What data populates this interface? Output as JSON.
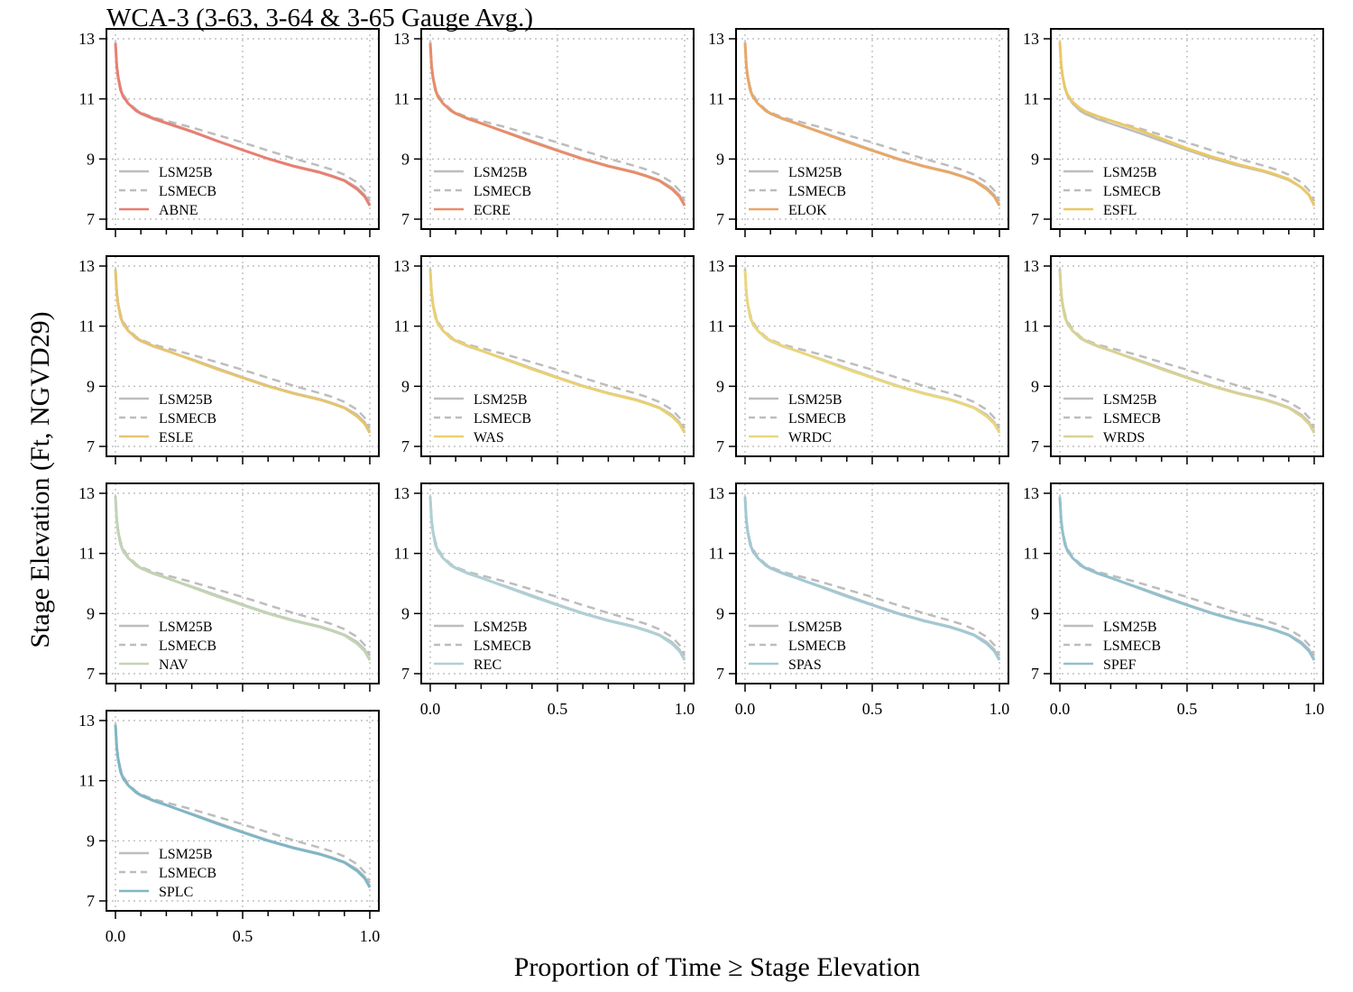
{
  "figure": {
    "title": "WCA-3 (3-63, 3-64 & 3-65 Gauge Avg.)",
    "xlabel": "Proportion of Time ≥ Stage Elevation",
    "ylabel": "Stage Elevation (Ft, NGVD29)"
  },
  "chart_data": {
    "type": "line",
    "title": "WCA-3 (3-63, 3-64 & 3-65 Gauge Avg.)",
    "xlabel": "Proportion of Time ≥ Stage Elevation",
    "ylabel": "Stage Elevation (Ft, NGVD29)",
    "xlim": [
      0,
      1
    ],
    "ylim": [
      7,
      13
    ],
    "x_ticks": [
      0.0,
      0.5,
      1.0
    ],
    "x_tick_labels": [
      "0.0",
      "0.5",
      "1.0"
    ],
    "y_ticks": [
      7,
      9,
      11,
      13
    ],
    "y_tick_labels": [
      "7",
      "9",
      "11",
      "13"
    ],
    "grid": true,
    "legend_position": "bottom-left",
    "x": [
      0,
      0.005,
      0.01,
      0.02,
      0.03,
      0.05,
      0.08,
      0.1,
      0.15,
      0.2,
      0.3,
      0.4,
      0.5,
      0.6,
      0.7,
      0.8,
      0.85,
      0.9,
      0.95,
      0.98,
      1.0
    ],
    "reference_series": [
      {
        "name": "LSM25B",
        "color": "#bdbdbd",
        "dash": "solid",
        "values": [
          12.9,
          12.2,
          11.8,
          11.35,
          11.1,
          10.85,
          10.6,
          10.5,
          10.32,
          10.18,
          9.9,
          9.6,
          9.3,
          9.02,
          8.78,
          8.58,
          8.45,
          8.3,
          8.05,
          7.8,
          7.45
        ]
      },
      {
        "name": "LSMECB",
        "color": "#bdbdbd",
        "dash": "dashed",
        "values": [
          12.9,
          12.2,
          11.8,
          11.4,
          11.15,
          10.9,
          10.65,
          10.55,
          10.38,
          10.27,
          10.05,
          9.8,
          9.55,
          9.28,
          9.02,
          8.78,
          8.65,
          8.48,
          8.22,
          7.95,
          7.6
        ]
      }
    ],
    "panels": [
      {
        "name": "ABNE",
        "color": "#e87f72",
        "values": [
          12.85,
          12.1,
          11.75,
          11.3,
          11.08,
          10.85,
          10.62,
          10.52,
          10.35,
          10.2,
          9.92,
          9.6,
          9.3,
          9.01,
          8.76,
          8.56,
          8.43,
          8.28,
          8.0,
          7.75,
          7.45
        ]
      },
      {
        "name": "ECRE",
        "color": "#e88c6a",
        "values": [
          12.85,
          12.1,
          11.75,
          11.3,
          11.08,
          10.85,
          10.62,
          10.52,
          10.34,
          10.19,
          9.88,
          9.57,
          9.28,
          9.0,
          8.76,
          8.56,
          8.43,
          8.28,
          8.0,
          7.75,
          7.45
        ]
      },
      {
        "name": "ELOK",
        "color": "#e8a768",
        "values": [
          12.85,
          12.1,
          11.75,
          11.3,
          11.08,
          10.85,
          10.62,
          10.52,
          10.34,
          10.19,
          9.88,
          9.57,
          9.28,
          9.0,
          8.76,
          8.56,
          8.43,
          8.28,
          8.0,
          7.75,
          7.45
        ]
      },
      {
        "name": "ESFL",
        "color": "#ebc865",
        "values": [
          12.9,
          12.15,
          11.8,
          11.36,
          11.14,
          10.9,
          10.68,
          10.58,
          10.42,
          10.28,
          10.0,
          9.68,
          9.35,
          9.07,
          8.82,
          8.61,
          8.48,
          8.33,
          8.05,
          7.8,
          7.45
        ]
      },
      {
        "name": "ESLE",
        "color": "#e6c470",
        "values": [
          12.85,
          12.1,
          11.75,
          11.3,
          11.08,
          10.85,
          10.62,
          10.52,
          10.34,
          10.19,
          9.88,
          9.57,
          9.28,
          9.0,
          8.76,
          8.56,
          8.43,
          8.28,
          8.0,
          7.75,
          7.45
        ]
      },
      {
        "name": "WAS",
        "color": "#ead071",
        "values": [
          12.85,
          12.1,
          11.75,
          11.3,
          11.08,
          10.85,
          10.62,
          10.52,
          10.34,
          10.19,
          9.88,
          9.57,
          9.28,
          9.0,
          8.76,
          8.56,
          8.43,
          8.28,
          8.0,
          7.75,
          7.45
        ]
      },
      {
        "name": "WRDC",
        "color": "#ead77e",
        "values": [
          12.85,
          12.1,
          11.75,
          11.3,
          11.08,
          10.85,
          10.62,
          10.52,
          10.34,
          10.19,
          9.88,
          9.57,
          9.28,
          9.0,
          8.76,
          8.56,
          8.43,
          8.28,
          8.0,
          7.75,
          7.45
        ]
      },
      {
        "name": "WRDS",
        "color": "#d8d294",
        "values": [
          12.85,
          12.1,
          11.75,
          11.3,
          11.08,
          10.85,
          10.62,
          10.52,
          10.34,
          10.19,
          9.88,
          9.57,
          9.28,
          9.0,
          8.76,
          8.56,
          8.43,
          8.28,
          8.0,
          7.75,
          7.45
        ]
      },
      {
        "name": "NAV",
        "color": "#c2d4b4",
        "values": [
          12.85,
          12.1,
          11.75,
          11.3,
          11.08,
          10.85,
          10.62,
          10.52,
          10.34,
          10.19,
          9.88,
          9.57,
          9.28,
          9.0,
          8.76,
          8.56,
          8.43,
          8.28,
          8.0,
          7.75,
          7.45
        ]
      },
      {
        "name": "REC",
        "color": "#afd0d4",
        "values": [
          12.85,
          12.1,
          11.75,
          11.3,
          11.08,
          10.85,
          10.62,
          10.52,
          10.34,
          10.19,
          9.88,
          9.57,
          9.28,
          9.0,
          8.76,
          8.56,
          8.43,
          8.28,
          8.0,
          7.75,
          7.45
        ]
      },
      {
        "name": "SPAS",
        "color": "#a3c8d3",
        "values": [
          12.85,
          12.1,
          11.75,
          11.3,
          11.08,
          10.85,
          10.62,
          10.52,
          10.34,
          10.19,
          9.88,
          9.57,
          9.28,
          9.0,
          8.76,
          8.56,
          8.43,
          8.28,
          8.0,
          7.75,
          7.45
        ]
      },
      {
        "name": "SPEF",
        "color": "#92c0cd",
        "values": [
          12.85,
          12.1,
          11.75,
          11.3,
          11.08,
          10.85,
          10.62,
          10.52,
          10.34,
          10.19,
          9.88,
          9.57,
          9.28,
          9.0,
          8.76,
          8.56,
          8.43,
          8.28,
          8.0,
          7.75,
          7.45
        ]
      },
      {
        "name": "SPLC",
        "color": "#7fb6c6",
        "values": [
          12.85,
          12.1,
          11.75,
          11.3,
          11.08,
          10.85,
          10.62,
          10.52,
          10.34,
          10.19,
          9.88,
          9.57,
          9.28,
          9.0,
          8.76,
          8.56,
          8.43,
          8.28,
          8.0,
          7.75,
          7.45
        ]
      }
    ]
  }
}
